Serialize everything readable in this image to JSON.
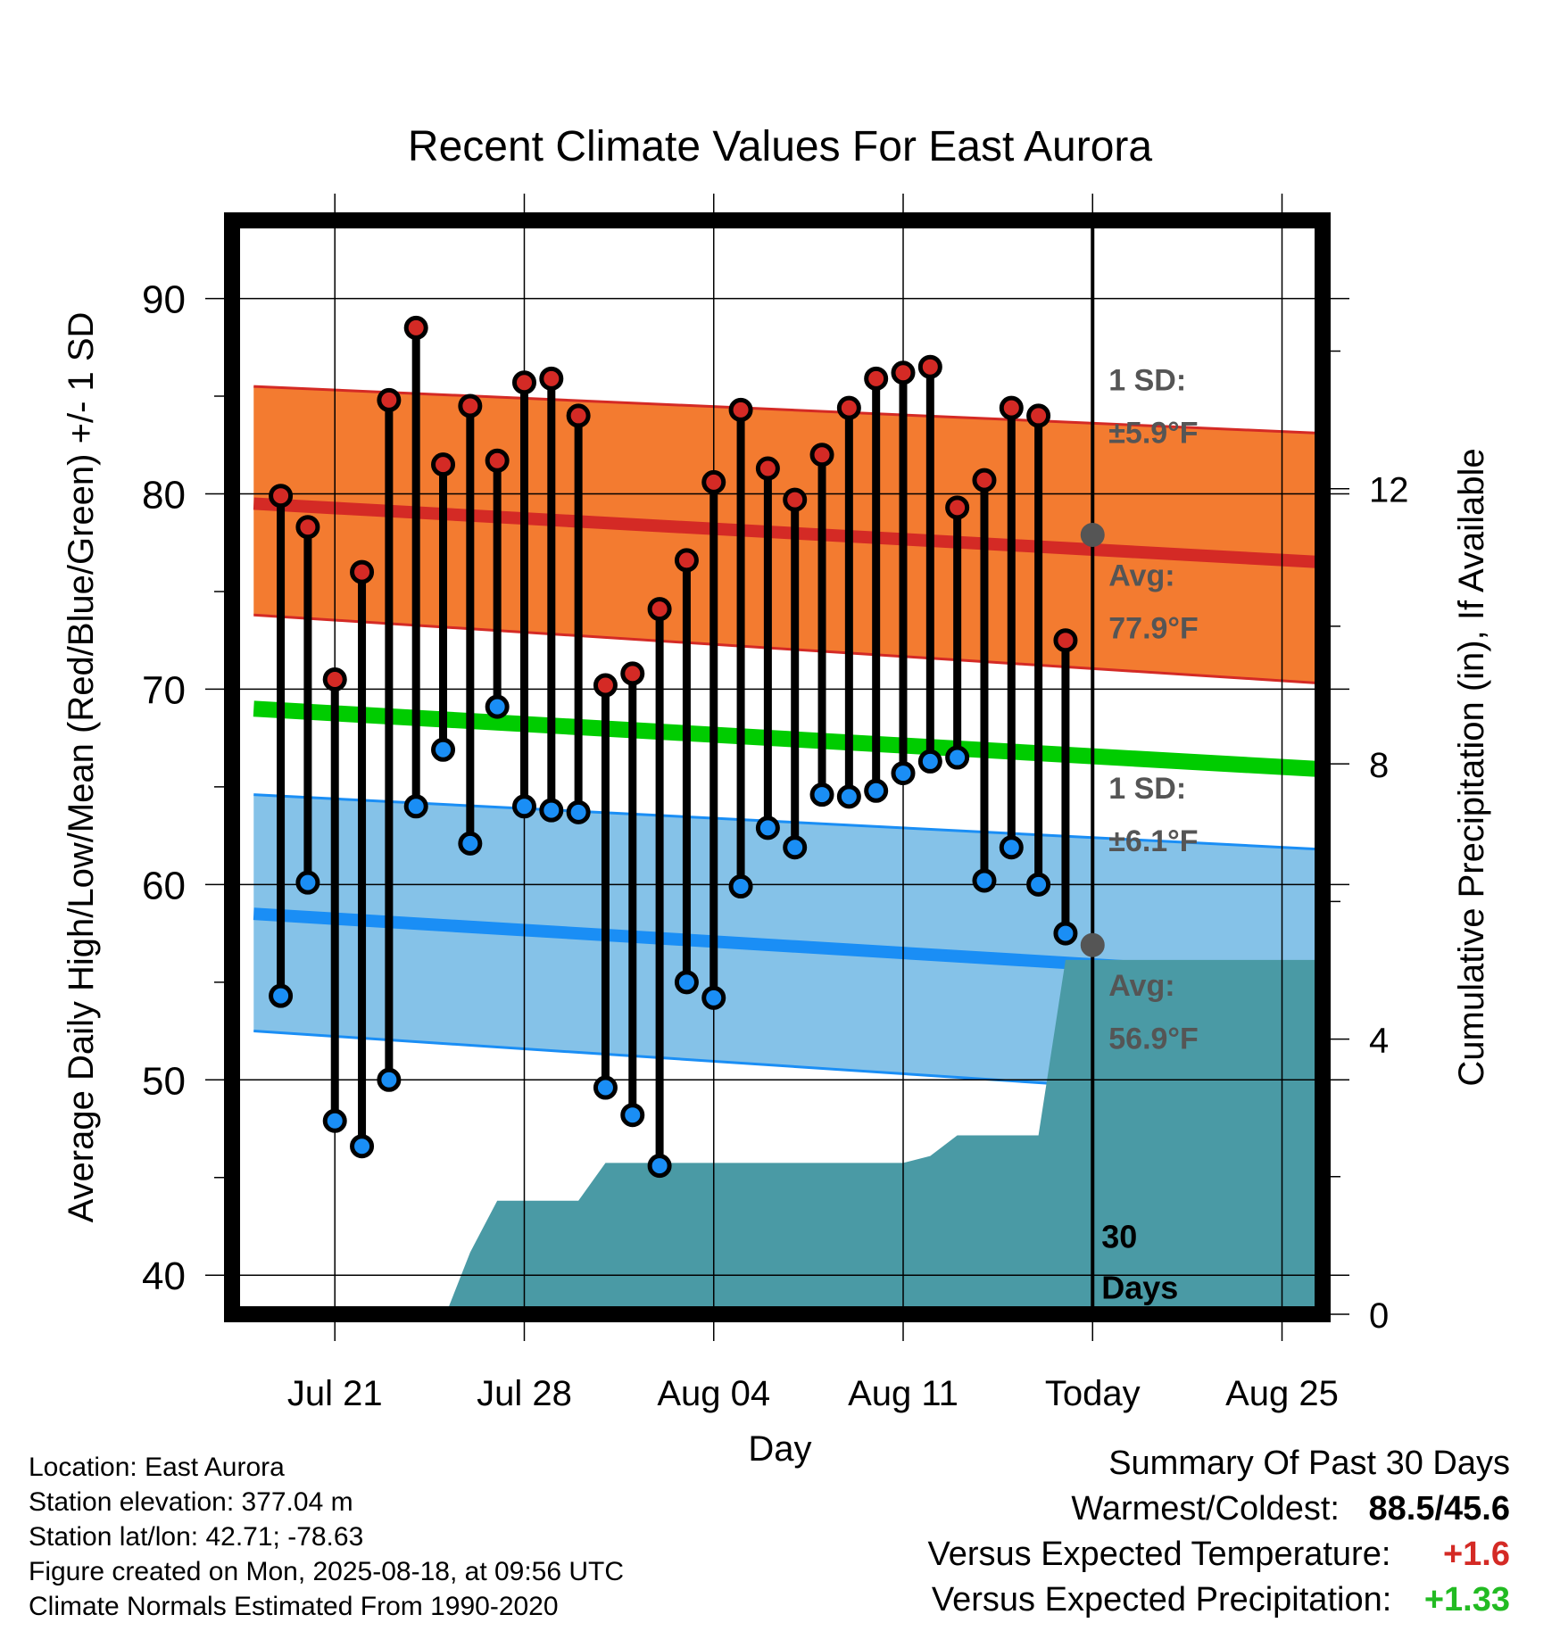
{
  "chart_data": {
    "type": "line",
    "title": "Recent Climate Values For East Aurora",
    "xlabel": "Day",
    "ylabel": "Average Daily High/Low/Mean (Red/Blue/Green) +/- 1 SD",
    "y2label": "Cumulative Precipitation (in), If Available",
    "ylim": [
      38,
      94
    ],
    "y2lim": [
      0,
      15.9
    ],
    "x_ticks": [
      {
        "day": 3,
        "label": "Jul 21"
      },
      {
        "day": 10,
        "label": "Jul 28"
      },
      {
        "day": 17,
        "label": "Aug 04"
      },
      {
        "day": 24,
        "label": "Aug 11"
      },
      {
        "day": 31,
        "label": "Today"
      },
      {
        "day": 38,
        "label": "Aug 25"
      }
    ],
    "y_ticks": [
      40,
      50,
      60,
      70,
      80,
      90
    ],
    "y2_ticks": [
      0,
      4,
      8,
      12
    ],
    "xlim": [
      -0.8,
      39.5
    ],
    "today_day": 31,
    "days": [
      1,
      2,
      3,
      4,
      5,
      6,
      7,
      8,
      9,
      10,
      11,
      12,
      13,
      14,
      15,
      16,
      17,
      18,
      19,
      20,
      21,
      22,
      23,
      24,
      25,
      26,
      27,
      28,
      29,
      30
    ],
    "highs": [
      79.9,
      78.3,
      70.5,
      76.0,
      84.8,
      88.5,
      81.5,
      84.5,
      81.7,
      85.7,
      85.9,
      84.0,
      70.2,
      70.8,
      74.1,
      76.6,
      80.6,
      84.3,
      81.3,
      79.7,
      82.0,
      84.4,
      85.9,
      86.2,
      86.5,
      79.3,
      80.7,
      84.4,
      84.0,
      72.5
    ],
    "lows": [
      54.3,
      60.1,
      47.9,
      46.6,
      50.0,
      64.0,
      66.9,
      62.1,
      69.1,
      64.0,
      63.8,
      63.7,
      49.6,
      48.2,
      45.6,
      55.0,
      54.2,
      59.9,
      62.9,
      61.9,
      64.6,
      64.5,
      64.8,
      65.7,
      66.3,
      66.5,
      60.2,
      61.9,
      60.0,
      57.5
    ],
    "normal_high": {
      "x": [
        0,
        39.5
      ],
      "y": [
        79.5,
        76.5
      ],
      "sd_upper": [
        85.5,
        83.1
      ],
      "sd_lower": [
        73.8,
        70.3
      ]
    },
    "normal_low": {
      "x": [
        0,
        39.5
      ],
      "y": [
        58.5,
        55.2
      ],
      "sd_upper": [
        64.6,
        61.8
      ],
      "sd_lower": [
        52.5,
        48.9
      ]
    },
    "normal_mean": {
      "x": [
        0,
        39.5
      ],
      "y": [
        69.0,
        65.9
      ]
    },
    "precip": {
      "x": [
        7.1,
        8.0,
        9.0,
        10.0,
        11.0,
        12.0,
        13.0,
        14.0,
        15.0,
        16.0,
        17.0,
        18.0,
        19.0,
        20.0,
        21.0,
        22.0,
        23.0,
        24.0,
        25.0,
        26.0,
        27.0,
        28.0,
        29.0,
        30.0,
        31.0,
        39.5
      ],
      "y": [
        0,
        0.9,
        1.65,
        1.65,
        1.65,
        1.65,
        2.2,
        2.2,
        2.2,
        2.2,
        2.2,
        2.2,
        2.2,
        2.2,
        2.2,
        2.2,
        2.2,
        2.2,
        2.3,
        2.6,
        2.6,
        2.6,
        2.6,
        5.15,
        5.15,
        5.15
      ]
    },
    "annotations": {
      "high_sd": [
        "1 SD:",
        "±5.9°F"
      ],
      "high_avg": [
        "Avg:",
        "77.9°F"
      ],
      "low_sd": [
        "1 SD:",
        "±6.1°F"
      ],
      "low_avg": [
        "Avg:",
        "56.9°F"
      ],
      "window": [
        "30",
        "Days"
      ]
    },
    "today_high_avg": 77.9,
    "today_low_avg": 56.9,
    "grid": true
  },
  "colors": {
    "high_band": "#f37b30",
    "high_line": "#d42a25",
    "low_band": "#85c2e8",
    "low_line": "#1a8ef5",
    "mean_line": "#00cc00",
    "precip_fill": "#4a9aa5",
    "marker_high": "#d42a25",
    "marker_low": "#1a8ef5",
    "annotation_text": "#555555",
    "positive_temp": "#d42a25",
    "positive_precip": "#22bb22"
  },
  "meta": {
    "location": "Location: East Aurora",
    "elevation": "Station elevation: 377.04 m",
    "latlon": "Station lat/lon: 42.71; -78.63",
    "created": "Figure created on Mon, 2025-08-18, at 09:56 UTC",
    "normals": "Climate Normals Estimated From 1990-2020"
  },
  "summary": {
    "title": "Summary Of Past 30 Days",
    "warm_cold_label": "Warmest/Coldest:",
    "warm_cold_value": "88.5/45.6",
    "temp_label": "Versus Expected Temperature:",
    "temp_value": "+1.6",
    "precip_label": "Versus Expected Precipitation:",
    "precip_value": "+1.33"
  }
}
